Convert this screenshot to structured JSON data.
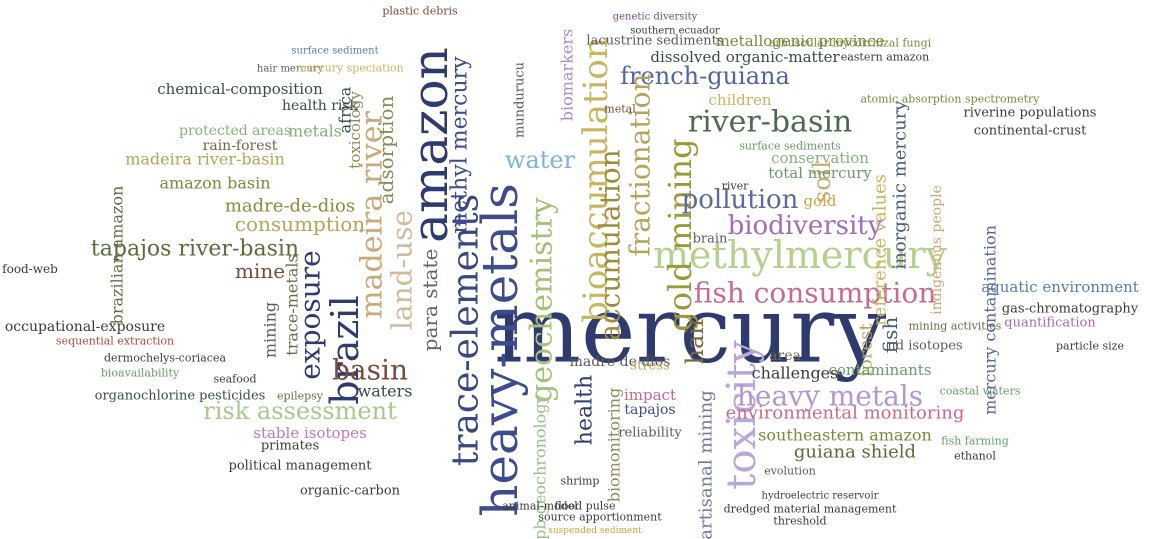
{
  "words": [
    "mercury",
    "heavy-metals",
    "amazon",
    "trace-elements",
    "methylmercury",
    "bioaccumulation",
    "toxicity",
    "geochemistry",
    "river-basin",
    "french-guiana",
    "fish consumption",
    "heavy metals",
    "gold mining",
    "pollution",
    "biodiversity",
    "brazil",
    "madeira river",
    "land-use",
    "exposure",
    "basin",
    "adsorption",
    "water",
    "fractionation",
    "accumulation",
    "methyl mercury",
    "risk assessment",
    "tapajos river-basin",
    "consumption",
    "madre-de-dios",
    "amazon basin",
    "madeira river-basin",
    "environmental monitoring",
    "southeastern amazon",
    "guiana shield",
    "artisanal mining",
    "health",
    "biomonitoring",
    "u-pb geochronology",
    "inorganic mercury",
    "reference values",
    "soil",
    "hair",
    "forest",
    "fish",
    "mercury contamination",
    "indigenous people",
    "aquatic environment",
    "occupational-exposure",
    "brazilian amazon",
    "mine",
    "metals",
    "dissolved organic-matter",
    "metallogenic province",
    "chemical-composition",
    "health risk",
    "protected areas",
    "rain-forest",
    "conservation",
    "total mercury",
    "gold",
    "contaminants",
    "challenges",
    "area",
    "impact",
    "tapajos",
    "madre de dios",
    "waters",
    "stable isotopes",
    "organochlorine pesticides",
    "sequential extraction",
    "bioavailability",
    "seafood",
    "epilepsy",
    "toxicology",
    "africa",
    "para state",
    "mining",
    "trace-metals",
    "biomarkers",
    "mundurucu",
    "children",
    "riverine populations",
    "continental-crust",
    "gas-chromatography",
    "quantification",
    "particle size",
    "coastal waters",
    "political management",
    "organic-carbon",
    "primates",
    "flood pulse",
    "shrimp",
    "dredged material management",
    "hydroelectric reservoir",
    "ethanol",
    "fish farming",
    "reliability",
    "stress",
    "mining activities",
    "nd isotopes",
    "surface sediments",
    "lacustrine sediments",
    "southern ecuador",
    "genetic diversity",
    "plastic debris",
    "surface sediment",
    "hair mercury",
    "mercury speciation",
    "arbuscular mycorrhizal fungi",
    "atomic absorption spectrometry",
    "eastern amazon",
    "food-web",
    "dermochelys-coriacea",
    "evolution",
    "threshold",
    "source apportionment",
    "suspended sediment",
    "animal-model",
    "metal",
    "river",
    "brain"
  ]
}
